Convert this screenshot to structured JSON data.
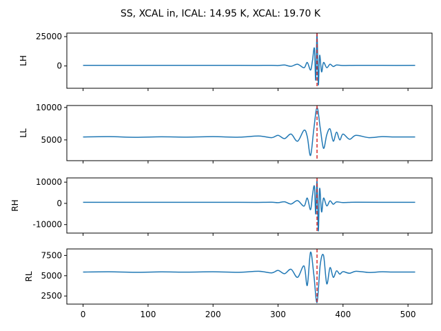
{
  "figure_title": "SS, XCAL in, ICAL: 14.95 K, XCAL: 19.70 K",
  "colors": {
    "signal": "#1f77b4",
    "marker": "#d62728",
    "axes": "#000000"
  },
  "chart_data": [
    {
      "type": "line",
      "ylabel": "LH",
      "xlim": [
        -25,
        537
      ],
      "ylim": [
        -19000,
        28000
      ],
      "yticks": [
        0,
        25000
      ],
      "xticks": [
        0,
        100,
        200,
        300,
        400,
        500
      ],
      "show_xticklabels": false,
      "baseline": 500,
      "marker_x": 360,
      "series": [
        {
          "x": [
            0,
            60,
            120,
            180,
            240,
            270,
            290,
            300,
            310,
            320,
            330,
            340,
            345,
            350,
            353,
            356,
            358,
            360,
            362,
            364,
            367,
            370,
            375,
            380,
            385,
            390,
            400,
            420,
            460,
            511
          ],
          "y": [
            500,
            500,
            500,
            500,
            520,
            480,
            560,
            350,
            800,
            -300,
            1500,
            -1500,
            3000,
            -3500,
            4500,
            15000,
            -12000,
            27500,
            -16000,
            9000,
            -5000,
            3000,
            -1500,
            1500,
            -500,
            800,
            400,
            550,
            500,
            500
          ]
        }
      ]
    },
    {
      "type": "line",
      "ylabel": "LL",
      "xlim": [
        -25,
        537
      ],
      "ylim": [
        1800,
        10300
      ],
      "yticks": [
        5000,
        10000
      ],
      "xticks": [
        0,
        100,
        200,
        300,
        400,
        500
      ],
      "show_xticklabels": false,
      "baseline": 5450,
      "marker_x": 360,
      "series": [
        {
          "x": [
            0,
            40,
            80,
            120,
            160,
            200,
            240,
            270,
            290,
            300,
            310,
            320,
            330,
            340,
            345,
            350,
            355,
            360,
            365,
            370,
            375,
            380,
            385,
            390,
            395,
            400,
            410,
            420,
            440,
            460,
            480,
            511
          ],
          "y": [
            5450,
            5500,
            5400,
            5480,
            5430,
            5500,
            5420,
            5600,
            5350,
            5700,
            5200,
            5900,
            4800,
            6500,
            5500,
            2600,
            6600,
            10000,
            6800,
            3700,
            5800,
            6700,
            4800,
            6200,
            5000,
            5900,
            5100,
            5700,
            5350,
            5500,
            5450,
            5450
          ]
        }
      ]
    },
    {
      "type": "line",
      "ylabel": "RH",
      "xlim": [
        -25,
        537
      ],
      "ylim": [
        -14000,
        12000
      ],
      "yticks": [
        -10000,
        0,
        10000
      ],
      "xticks": [
        0,
        100,
        200,
        300,
        400,
        500
      ],
      "show_xticklabels": false,
      "baseline": 500,
      "marker_x": 360,
      "series": [
        {
          "x": [
            0,
            60,
            120,
            180,
            240,
            270,
            290,
            300,
            310,
            320,
            330,
            340,
            345,
            350,
            353,
            356,
            358,
            360,
            362,
            364,
            367,
            370,
            375,
            380,
            385,
            390,
            400,
            420,
            460,
            511
          ],
          "y": [
            500,
            500,
            500,
            500,
            520,
            480,
            550,
            350,
            750,
            -300,
            1300,
            -1300,
            2500,
            -3000,
            3800,
            8000,
            -5000,
            10500,
            -13000,
            7000,
            -4000,
            2500,
            -1200,
            1200,
            -400,
            700,
            400,
            550,
            500,
            500
          ]
        }
      ]
    },
    {
      "type": "line",
      "ylabel": "RL",
      "xlim": [
        -25,
        537
      ],
      "ylim": [
        1500,
        8300
      ],
      "yticks": [
        2500,
        5000,
        7500
      ],
      "xticks": [
        0,
        100,
        200,
        300,
        400,
        500
      ],
      "show_xticklabels": true,
      "baseline": 5450,
      "marker_x": 360,
      "series": [
        {
          "x": [
            0,
            40,
            80,
            120,
            160,
            200,
            240,
            270,
            290,
            300,
            310,
            320,
            330,
            340,
            345,
            350,
            355,
            360,
            365,
            370,
            375,
            380,
            385,
            390,
            395,
            400,
            410,
            420,
            440,
            460,
            480,
            511
          ],
          "y": [
            5450,
            5480,
            5420,
            5470,
            5440,
            5480,
            5420,
            5550,
            5350,
            5650,
            5250,
            5800,
            4800,
            6200,
            3800,
            7900,
            5200,
            1700,
            6400,
            7500,
            4000,
            6000,
            4800,
            5600,
            5200,
            5500,
            5300,
            5550,
            5400,
            5480,
            5450,
            5450
          ]
        }
      ]
    }
  ]
}
